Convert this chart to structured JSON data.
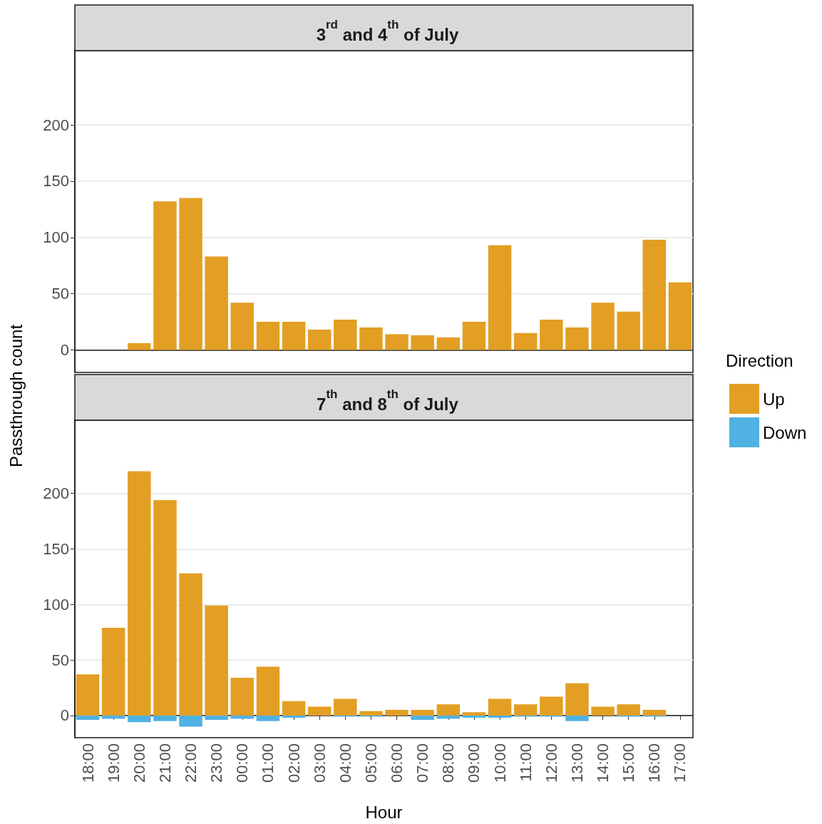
{
  "chart_data": [
    {
      "type": "bar",
      "title": "3$^{rd}$ and 4$^{th}$ of July",
      "categories": [
        null,
        null,
        null,
        null,
        null,
        null,
        null,
        null,
        null,
        null,
        null,
        null,
        null,
        null,
        null,
        null,
        null,
        null,
        null,
        null,
        null,
        null,
        null,
        null
      ],
      "series": [
        {
          "color": "#e39f24",
          "values": [
            null,
            null,
            6,
            132,
            135,
            83,
            42,
            25,
            25,
            18,
            27,
            20,
            14,
            13,
            11,
            25,
            93,
            15,
            27,
            20,
            42,
            34,
            98,
            60
          ]
        }
      ],
      "stacked": true,
      "ylim": [
        -20,
        266
      ],
      "yticks": [
        0,
        50,
        100,
        150,
        200
      ],
      "grid": "y",
      "legend": false,
      "tick_labels": "y"
    },
    {
      "type": "bar",
      "title": "7$^{th}$ and 8$^{th}$ of July",
      "xlabel": "Hour",
      "ylabel": "Passthrough count",
      "legend_title": "Direction",
      "categories": [
        "18:00",
        "19:00",
        "20:00",
        "21:00",
        "22:00",
        "23:00",
        "00:00",
        "01:00",
        "02:00",
        "03:00",
        "04:00",
        "05:00",
        "06:00",
        "07:00",
        "08:00",
        "09:00",
        "10:00",
        "11:00",
        "12:00",
        "13:00",
        "14:00",
        "15:00",
        "16:00",
        "17:00"
      ],
      "series": [
        {
          "name": "Up",
          "color": "#e39f24",
          "values": [
            37,
            79,
            220,
            194,
            128,
            99,
            34,
            44,
            13,
            8,
            15,
            4,
            5,
            5,
            10,
            3,
            15,
            10,
            17,
            29,
            8,
            10,
            5,
            null
          ]
        },
        {
          "name": "Down",
          "color": "#50b1e3",
          "values": [
            -4,
            -3,
            -6,
            -5,
            -10,
            -4,
            -3,
            -5,
            -2,
            0,
            -1,
            -1,
            0,
            -4,
            -3,
            -2,
            -2,
            -1,
            -1,
            -5,
            0,
            -1,
            -1,
            null
          ]
        }
      ],
      "stacked": true,
      "ylim": [
        -20,
        266
      ],
      "yticks": [
        0,
        50,
        100,
        150,
        200
      ],
      "grid": "y",
      "legend": "right"
    }
  ]
}
